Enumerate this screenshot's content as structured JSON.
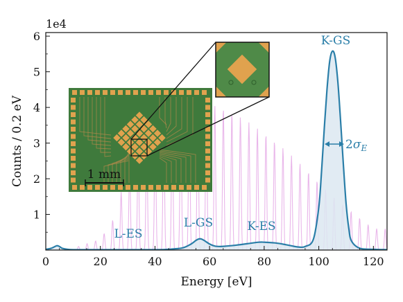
{
  "chart_data": {
    "type": "line",
    "title": "",
    "xlabel": "Energy [eV]",
    "ylabel": "Counts / 0.2 eV",
    "offset_text": "1e4",
    "xlim": [
      0,
      125
    ],
    "ylim": [
      0,
      6.1
    ],
    "xticks": [
      0,
      20,
      40,
      60,
      80,
      100,
      120
    ],
    "yticks": [
      1,
      2,
      3,
      4,
      5,
      6
    ],
    "grid": false,
    "colors": {
      "spectrum": "#2a7ea8",
      "fill": "#dce7f1",
      "comb": "#e9b6ea",
      "chip_bg": "#3f7a3c",
      "chip_pad": "#e0a24e"
    },
    "series": [
      {
        "name": "",
        "style": "line",
        "x": [
          0,
          2,
          4,
          5,
          6,
          8,
          10,
          15,
          20,
          30,
          40,
          45,
          50,
          53,
          55,
          56,
          57,
          58,
          60,
          62,
          64,
          66,
          70,
          74,
          78,
          80,
          84,
          88,
          92,
          95,
          98,
          100,
          101,
          102,
          103,
          104,
          105,
          106,
          107,
          108,
          109,
          110,
          111,
          112,
          115,
          120,
          125
        ],
        "y": [
          0.02,
          0.05,
          0.12,
          0.1,
          0.05,
          0.02,
          0.01,
          0.01,
          0.01,
          0.01,
          0.01,
          0.02,
          0.06,
          0.16,
          0.27,
          0.31,
          0.31,
          0.27,
          0.17,
          0.11,
          0.1,
          0.11,
          0.14,
          0.18,
          0.22,
          0.22,
          0.2,
          0.15,
          0.09,
          0.1,
          0.3,
          1.2,
          2.2,
          3.4,
          4.5,
          5.3,
          5.58,
          5.4,
          4.7,
          3.6,
          2.4,
          1.3,
          0.6,
          0.25,
          0.05,
          0.02,
          0.01
        ]
      },
      {
        "name": "",
        "style": "comb",
        "x_start": 12,
        "spacing": 3.12,
        "envelope_x": [
          12,
          20,
          25,
          30,
          35,
          40,
          45,
          50,
          55,
          60,
          65,
          70,
          75,
          80,
          85,
          90,
          95,
          100,
          105,
          110,
          115,
          120
        ],
        "envelope_y": [
          0.1,
          0.3,
          0.9,
          2.3,
          3.0,
          3.4,
          3.7,
          3.95,
          4.1,
          4.1,
          4.0,
          3.8,
          3.55,
          3.3,
          3.0,
          2.65,
          2.3,
          1.9,
          1.5,
          1.2,
          0.9,
          0.6
        ]
      }
    ],
    "annotations": {
      "k_gs": "K-GS",
      "k_es": "K-ES",
      "l_gs": "L-GS",
      "l_es": "L-ES",
      "sigma_coef": "2",
      "sigma_sym": "σ",
      "sigma_sub": "E"
    },
    "inset": {
      "scale_label": "1 mm"
    }
  }
}
